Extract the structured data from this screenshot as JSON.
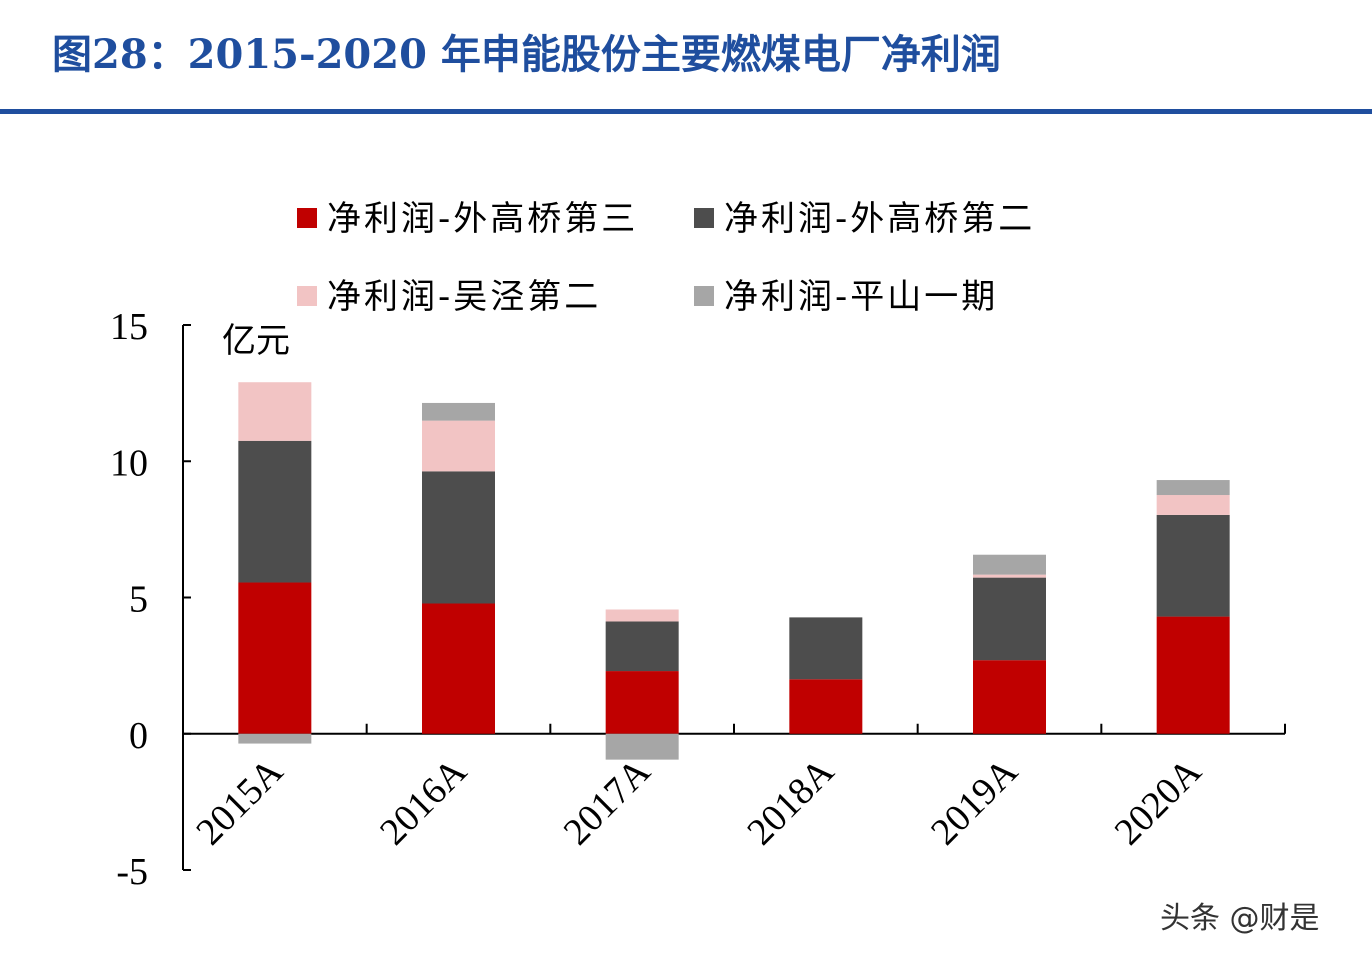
{
  "title": "图28：2015-2020 年申能股份主要燃煤电厂净利润",
  "watermark": "头条 @财是",
  "chart_data": {
    "type": "bar",
    "stacked": true,
    "ylabel": "亿元",
    "ylim": [
      -5,
      15
    ],
    "yticks": [
      "-5",
      "0",
      "5",
      "10",
      "15"
    ],
    "categories": [
      "2015A",
      "2016A",
      "2017A",
      "2018A",
      "2019A",
      "2020A"
    ],
    "legend_position": "top",
    "grid": false,
    "series": [
      {
        "name": "净利润-外高桥第三",
        "color": "#c00000",
        "values": [
          5.55,
          4.78,
          2.3,
          2.0,
          2.7,
          4.3
        ]
      },
      {
        "name": "净利润-外高桥第二",
        "color": "#4d4d4d",
        "values": [
          5.2,
          4.85,
          1.82,
          2.27,
          3.03,
          3.73
        ]
      },
      {
        "name": "净利润-吴泾第二",
        "color": "#f2c4c4",
        "values": [
          2.15,
          1.86,
          0.44,
          0,
          0.11,
          0.73
        ]
      },
      {
        "name": "净利润-平山一期",
        "color": "#a6a6a6",
        "values": [
          -0.36,
          0.65,
          -0.95,
          0,
          0.73,
          0.55
        ]
      }
    ]
  }
}
